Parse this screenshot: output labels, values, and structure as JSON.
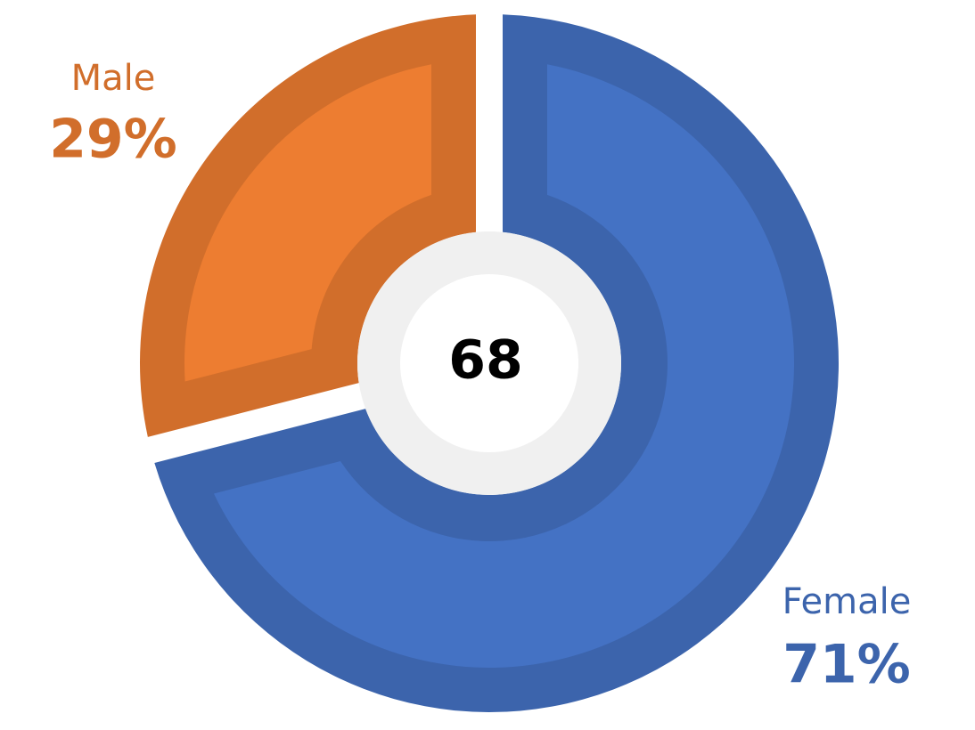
{
  "chart_data": {
    "type": "pie",
    "categories": [
      "Female",
      "Male"
    ],
    "values": [
      71,
      29
    ],
    "value_labels": [
      "71%",
      "29%"
    ],
    "colors": [
      "#4472c4",
      "#ed7d31"
    ],
    "center_label": "68"
  }
}
